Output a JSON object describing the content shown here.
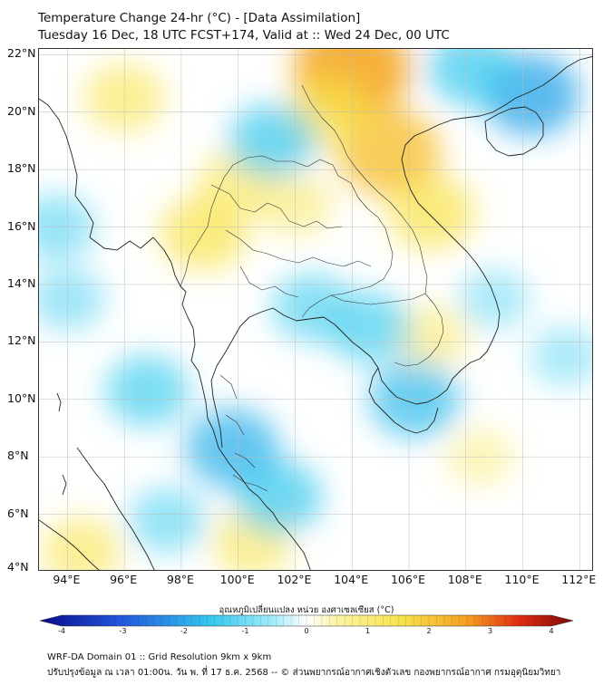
{
  "title": {
    "line1": "Temperature Change 24-hr (°C) - [Data Assimilation]",
    "line2": "Tuesday 16 Dec, 18 UTC FCST+174, Valid at :: Wed 24 Dec, 00 UTC"
  },
  "lat_labels": [
    "22°N",
    "20°N",
    "18°N",
    "16°N",
    "14°N",
    "12°N",
    "10°N",
    "8°N",
    "6°N",
    "4°N"
  ],
  "lon_labels": [
    "94°E",
    "96°E",
    "98°E",
    "100°E",
    "102°E",
    "104°E",
    "106°E",
    "108°E",
    "110°E",
    "112°E"
  ],
  "colorbar": {
    "title": "อุณหภูมิเปลี่ยนแปลง หน่วย องศาเซลเซียส (°C)",
    "ticks": [
      "-4",
      "-3",
      "-2",
      "-1",
      "0",
      "1",
      "2",
      "3",
      "4"
    ],
    "min": -4,
    "max": 4,
    "colors": {
      "deep_blue": "#0a0a8c",
      "blue": "#2255dd",
      "cyan": "#33c8ee",
      "light_cyan": "#a6ecfa",
      "white": "#ffffff",
      "light_yellow": "#fbf4a0",
      "yellow": "#f8e24a",
      "orange": "#f5a020",
      "red": "#e02a10",
      "dark_red": "#7a0a0a"
    }
  },
  "footer": {
    "line1": "WRF-DA Domain 01 :: Grid Resolution 9km x 9km",
    "line2": "ปรับปรุงข้อมูล ณ เวลา 01:00น. วัน พ. ที่ 17 ธ.ค. 2568 -- © ส่วนพยากรณ์อากาศเชิงตัวเลข กองพยากรณ์อากาศ กรมอุตุนิยมวิทยา"
  },
  "map": {
    "lon_range": [
      93,
      112.5
    ],
    "lat_range": [
      4,
      22.2
    ],
    "anomalies": [
      {
        "lon": 104.0,
        "lat": 21.5,
        "value": 1.9
      },
      {
        "lon": 105.3,
        "lat": 18.6,
        "value": 1.5
      },
      {
        "lon": 103.2,
        "lat": 20.0,
        "value": 1.0
      },
      {
        "lon": 106.8,
        "lat": 16.5,
        "value": 1.0
      },
      {
        "lon": 98.8,
        "lat": 15.8,
        "value": 1.0
      },
      {
        "lon": 100.0,
        "lat": 17.5,
        "value": 0.8
      },
      {
        "lon": 102.0,
        "lat": 16.8,
        "value": 0.6
      },
      {
        "lon": 94.5,
        "lat": 4.7,
        "value": 0.8
      },
      {
        "lon": 100.5,
        "lat": 5.0,
        "value": 0.8
      },
      {
        "lon": 96.0,
        "lat": 20.5,
        "value": 0.8
      },
      {
        "lon": 106.8,
        "lat": 12.2,
        "value": 0.6
      },
      {
        "lon": 108.5,
        "lat": 8.0,
        "value": 0.4
      },
      {
        "lon": 110.3,
        "lat": 20.6,
        "value": -1.3
      },
      {
        "lon": 108.2,
        "lat": 21.5,
        "value": -1.0
      },
      {
        "lon": 101.2,
        "lat": 19.0,
        "value": -1.0
      },
      {
        "lon": 106.2,
        "lat": 10.0,
        "value": -1.1
      },
      {
        "lon": 99.8,
        "lat": 8.3,
        "value": -1.2
      },
      {
        "lon": 101.4,
        "lat": 6.6,
        "value": -1.0
      },
      {
        "lon": 104.6,
        "lat": 12.5,
        "value": -0.9
      },
      {
        "lon": 102.6,
        "lat": 13.2,
        "value": -0.8
      },
      {
        "lon": 96.8,
        "lat": 10.3,
        "value": -0.9
      },
      {
        "lon": 93.6,
        "lat": 16.0,
        "value": -0.7
      },
      {
        "lon": 94.0,
        "lat": 13.5,
        "value": -0.6
      },
      {
        "lon": 97.5,
        "lat": 5.8,
        "value": -0.7
      },
      {
        "lon": 111.5,
        "lat": 11.5,
        "value": -0.5
      },
      {
        "lon": 109.0,
        "lat": 13.5,
        "value": -0.5
      }
    ]
  }
}
